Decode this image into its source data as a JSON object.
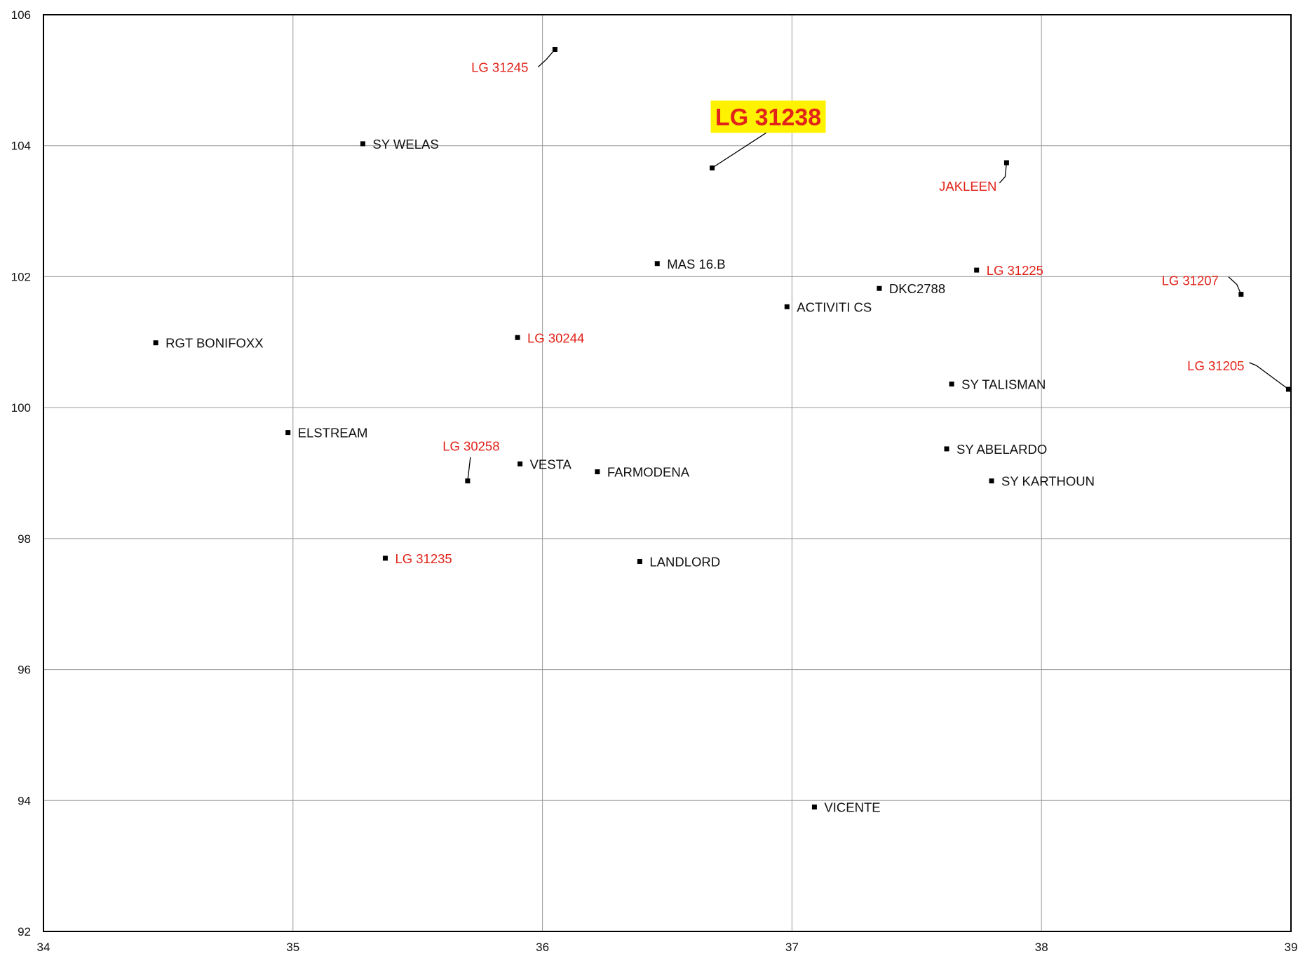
{
  "colors": {
    "default_label": "#111111",
    "highlight_label": "#e2231a",
    "highlight_box": "#fff200",
    "marker": "#000000",
    "grid": "#9a9a9a",
    "frame": "#000000"
  },
  "chart_data": {
    "type": "scatter",
    "xlim": [
      34,
      39
    ],
    "ylim": [
      92,
      106
    ],
    "xticks": [
      "34",
      "35",
      "36",
      "37",
      "38",
      "39"
    ],
    "yticks": [
      "92",
      "94",
      "96",
      "98",
      "100",
      "102",
      "104",
      "106"
    ],
    "grid": true,
    "points": [
      {
        "label": "LG 31245",
        "x": 36.05,
        "y": 105.47,
        "highlight": true,
        "leader": true
      },
      {
        "label": "SY WELAS",
        "x": 35.28,
        "y": 104.03,
        "highlight": false
      },
      {
        "label": "LG 31238",
        "x": 36.68,
        "y": 103.66,
        "highlight": true,
        "boxed": true,
        "leader": true
      },
      {
        "label": "JAKLEEN",
        "x": 37.86,
        "y": 103.74,
        "highlight": true,
        "leader": true
      },
      {
        "label": "MAS 16.B",
        "x": 36.46,
        "y": 102.2,
        "highlight": false
      },
      {
        "label": "LG 31225",
        "x": 37.74,
        "y": 102.1,
        "highlight": true
      },
      {
        "label": "LG 31207",
        "x": 38.8,
        "y": 101.73,
        "highlight": true,
        "leader": true
      },
      {
        "label": "DKC2788",
        "x": 37.35,
        "y": 101.82,
        "highlight": false
      },
      {
        "label": "ACTIVITI CS",
        "x": 36.98,
        "y": 101.54,
        "highlight": false
      },
      {
        "label": "RGT BONIFOXX",
        "x": 34.45,
        "y": 100.99,
        "highlight": false
      },
      {
        "label": "LG 30244",
        "x": 35.9,
        "y": 101.07,
        "highlight": true
      },
      {
        "label": "SY TALISMAN",
        "x": 37.64,
        "y": 100.36,
        "highlight": false
      },
      {
        "label": "LG 31205",
        "x": 38.99,
        "y": 100.28,
        "highlight": true,
        "leader": true
      },
      {
        "label": "ELSTREAM",
        "x": 34.98,
        "y": 99.62,
        "highlight": false
      },
      {
        "label": "SY ABELARDO",
        "x": 37.62,
        "y": 99.37,
        "highlight": false
      },
      {
        "label": "VESTA",
        "x": 35.91,
        "y": 99.14,
        "highlight": false
      },
      {
        "label": "FARMODENA",
        "x": 36.22,
        "y": 99.02,
        "highlight": false
      },
      {
        "label": "LG 30258",
        "x": 35.7,
        "y": 98.88,
        "highlight": true,
        "leader": true
      },
      {
        "label": "SY KARTHOUN",
        "x": 37.8,
        "y": 98.88,
        "highlight": false
      },
      {
        "label": "LG 31235",
        "x": 35.37,
        "y": 97.7,
        "highlight": true
      },
      {
        "label": "LANDLORD",
        "x": 36.39,
        "y": 97.65,
        "highlight": false
      },
      {
        "label": "VICENTE",
        "x": 37.09,
        "y": 93.9,
        "highlight": false
      }
    ]
  }
}
